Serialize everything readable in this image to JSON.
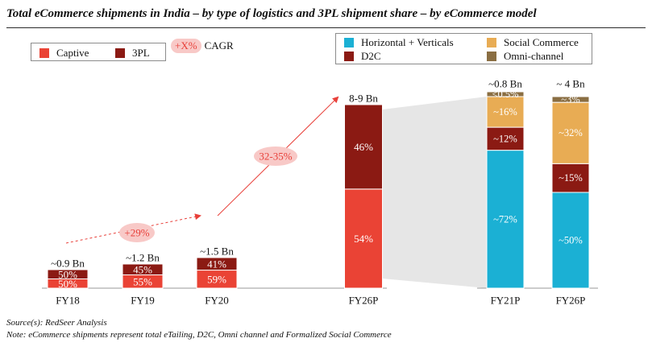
{
  "title": "Total eCommerce shipments in India – by type of logistics and 3PL shipment share – by eCommerce model",
  "legend_left": {
    "items": [
      {
        "label": "Captive",
        "color": "#EA4335"
      },
      {
        "label": "3PL",
        "color": "#8B1A13"
      }
    ],
    "cagr_symbol": "+X%",
    "cagr_label": "CAGR"
  },
  "legend_right": {
    "items": [
      {
        "label": "Horizontal + Verticals",
        "color": "#1BB0D4"
      },
      {
        "label": "Social Commerce",
        "color": "#E8AC54"
      },
      {
        "label": "D2C",
        "color": "#8B1A13"
      },
      {
        "label": "Omni-channel",
        "color": "#8A6E42"
      }
    ]
  },
  "chart_data": [
    {
      "type": "bar",
      "stacked": true,
      "title": "Total eCommerce shipments by type of logistics",
      "categories": [
        "FY18",
        "FY19",
        "FY20",
        "FY26P"
      ],
      "totals_label": [
        "~0.9 Bn",
        "~1.2 Bn",
        "~1.5 Bn",
        "8-9 Bn"
      ],
      "series": [
        {
          "name": "Captive",
          "values": [
            50,
            55,
            59,
            54
          ],
          "labels": [
            "50%",
            "55%",
            "59%",
            "54%"
          ]
        },
        {
          "name": "3PL",
          "values": [
            50,
            45,
            41,
            46
          ],
          "labels": [
            "50%",
            "45%",
            "41%",
            "46%"
          ]
        }
      ],
      "totals_bn": [
        0.9,
        1.2,
        1.5,
        8.5
      ],
      "cagr_labels": [
        "+29%",
        "32-35%"
      ]
    },
    {
      "type": "bar",
      "stacked": true,
      "title": "3PL shipment share by eCommerce model",
      "categories": [
        "FY21P",
        "FY26P"
      ],
      "totals_label": [
        "~0.8 Bn",
        "~ 4 Bn"
      ],
      "series": [
        {
          "name": "Horizontal + Verticals",
          "values": [
            72,
            50
          ],
          "labels": [
            "~72%",
            "~50%"
          ]
        },
        {
          "name": "D2C",
          "values": [
            12,
            15
          ],
          "labels": [
            "~12%",
            "~15%"
          ]
        },
        {
          "name": "Social Commerce",
          "values": [
            16,
            32
          ],
          "labels": [
            "~16%",
            "~32%"
          ]
        },
        {
          "name": "Omni-channel",
          "values": [
            0.5,
            3
          ],
          "labels": [
            "<0.5%",
            "~3%"
          ]
        }
      ]
    }
  ],
  "footnotes": {
    "source": "Source(s): RedSeer Analysis",
    "note": "Note: eCommerce shipments represent total eTailing, D2C, Omni channel and Formalized Social Commerce"
  }
}
